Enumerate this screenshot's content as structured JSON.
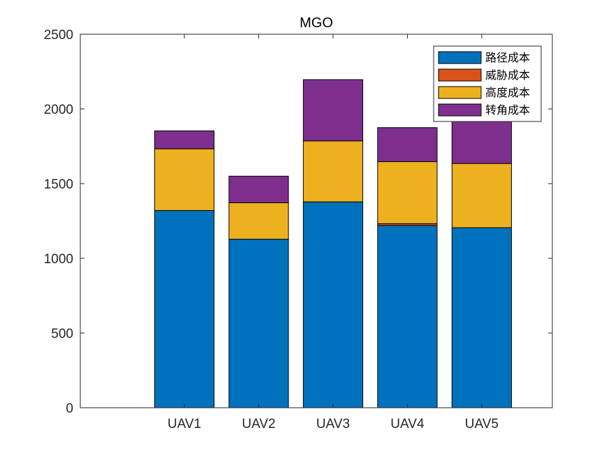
{
  "chart_data": {
    "type": "bar",
    "stacked": true,
    "title": "MGO",
    "categories": [
      "UAV1",
      "UAV2",
      "UAV3",
      "UAV4",
      "UAV5"
    ],
    "series": [
      {
        "name": "路径成本",
        "color": "#0072BD",
        "values": [
          1320,
          1128,
          1378,
          1220,
          1205
        ]
      },
      {
        "name": "威胁成本",
        "color": "#D95319",
        "values": [
          0,
          0,
          0,
          12,
          0
        ]
      },
      {
        "name": "高度成本",
        "color": "#EDB120",
        "values": [
          413,
          244,
          408,
          415,
          430
        ]
      },
      {
        "name": "转角成本",
        "color": "#7E2F8E",
        "values": [
          120,
          178,
          410,
          228,
          340
        ]
      }
    ],
    "ylim": [
      0,
      2500
    ],
    "yticks": [
      0,
      500,
      1000,
      1500,
      2000,
      2500
    ],
    "xlim": [
      -0.4,
      5.95
    ],
    "grid": false,
    "legend_position": "top-right"
  }
}
